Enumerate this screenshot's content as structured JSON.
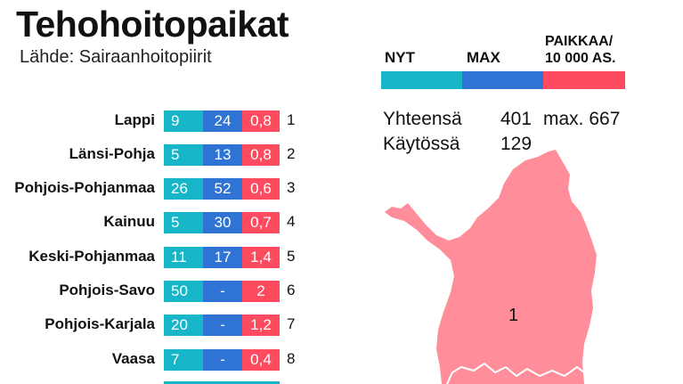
{
  "title": "Tehohoitopaikat",
  "source": "Lähde: Sairaanhoitopiirit",
  "legend": {
    "nyt": "NYT",
    "max": "MAX",
    "paikkaa_line1": "PAIKKAA/",
    "paikkaa_line2": "10 000 AS."
  },
  "totals": {
    "total_label": "Yhteensä",
    "total_value": "401",
    "max_text": "max. 667",
    "in_use_label": "Käytössä",
    "in_use_value": "129"
  },
  "rows": [
    {
      "name": "Lappi",
      "nyt": "9",
      "max": "24",
      "per10k": "0,8",
      "num": "1"
    },
    {
      "name": "Länsi-Pohja",
      "nyt": "5",
      "max": "13",
      "per10k": "0,8",
      "num": "2"
    },
    {
      "name": "Pohjois-Pohjanmaa",
      "nyt": "26",
      "max": "52",
      "per10k": "0,6",
      "num": "3"
    },
    {
      "name": "Kainuu",
      "nyt": "5",
      "max": "30",
      "per10k": "0,7",
      "num": "4"
    },
    {
      "name": "Keski-Pohjanmaa",
      "nyt": "11",
      "max": "17",
      "per10k": "1,4",
      "num": "5"
    },
    {
      "name": "Pohjois-Savo",
      "nyt": "50",
      "max": "-",
      "per10k": "2",
      "num": "6"
    },
    {
      "name": "Pohjois-Karjala",
      "nyt": "20",
      "max": "-",
      "per10k": "1,2",
      "num": "7"
    },
    {
      "name": "Vaasa",
      "nyt": "7",
      "max": "-",
      "per10k": "0,4",
      "num": "8"
    }
  ],
  "map": {
    "region_label": "1",
    "region_color": "#ff8e9a"
  },
  "colors": {
    "nyt": "#16b6c8",
    "max": "#2f73d4",
    "paikkaa": "#ff4b5f"
  }
}
